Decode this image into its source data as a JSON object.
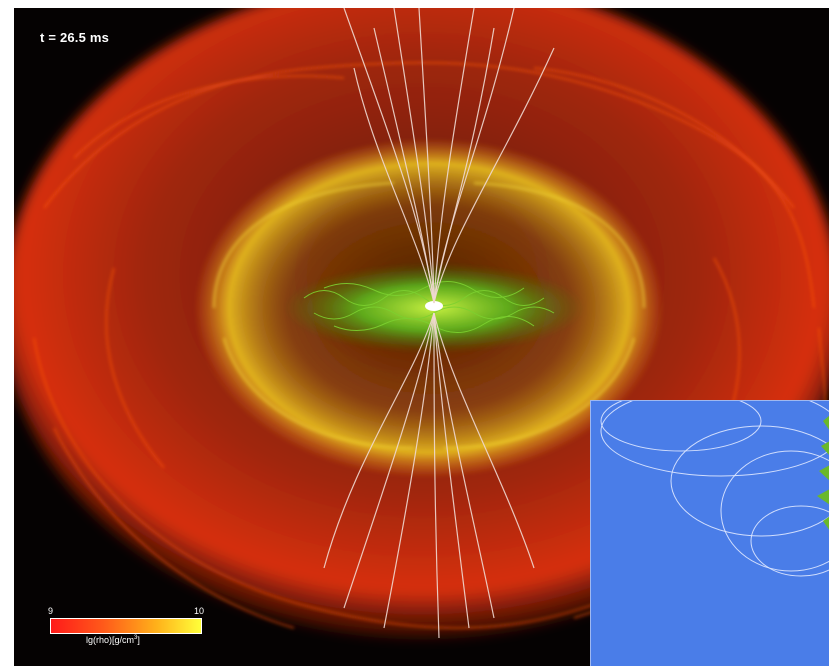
{
  "time_label": "t = 26.5 ms",
  "colorbar": {
    "min_label": "9",
    "max_label": "10",
    "label_prefix": "lg(rho)[g/cm",
    "label_exp": "3",
    "label_suffix": "]",
    "colors": [
      "#ff1a1a",
      "#ff5a1a",
      "#ffb01a",
      "#ffff3a"
    ]
  },
  "palette": {
    "background": "#050202",
    "envelope_red": "#d8300c",
    "torus_yellow": "#e8c020",
    "disk_green": "#5cc020",
    "field_lines": "#f0d8d0",
    "inset_blue": "#4a7de8"
  }
}
